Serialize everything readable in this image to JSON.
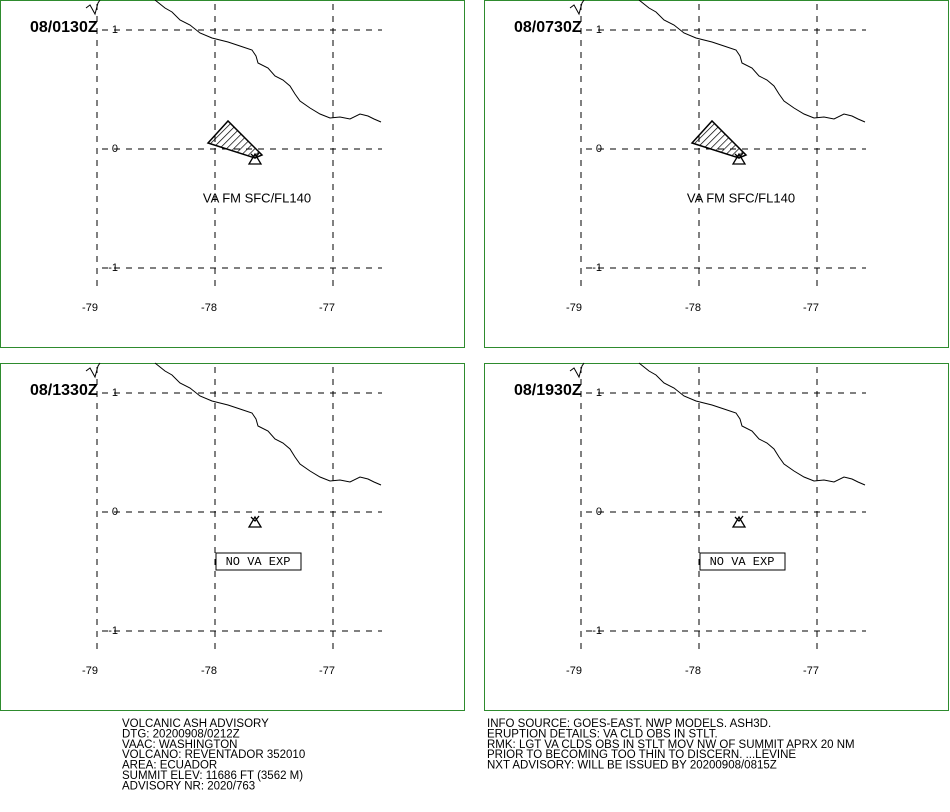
{
  "panels": [
    {
      "time": "08/0130Z",
      "lat_labels": [
        "1",
        "0",
        "-1"
      ],
      "lon_labels": [
        "-79",
        "-78",
        "-77"
      ],
      "annotation": "VA FM SFC/FL140",
      "ash": true
    },
    {
      "time": "08/0730Z",
      "lat_labels": [
        "1",
        "0",
        "-1"
      ],
      "lon_labels": [
        "-79",
        "-78",
        "-77"
      ],
      "annotation": "VA FM SFC/FL140",
      "ash": true
    },
    {
      "time": "08/1330Z",
      "lat_labels": [
        "1",
        "0",
        "-1"
      ],
      "lon_labels": [
        "-79",
        "-78",
        "-77"
      ],
      "annotation": "NO VA EXP",
      "ash": false
    },
    {
      "time": "08/1930Z",
      "lat_labels": [
        "1",
        "0",
        "-1"
      ],
      "lon_labels": [
        "-79",
        "-78",
        "-77"
      ],
      "annotation": "NO VA EXP",
      "ash": false
    }
  ],
  "footer": {
    "left": [
      "VOLCANIC ASH ADVISORY",
      "DTG: 20200908/0212Z",
      "VAAC: WASHINGTON",
      "VOLCANO: REVENTADOR 352010",
      "AREA: ECUADOR",
      "SUMMIT ELEV: 11686 FT (3562 M)",
      "ADVISORY NR: 2020/763"
    ],
    "right": [
      "INFO SOURCE: GOES-EAST. NWP MODELS. ASH3D.",
      "ERUPTION DETAILS: VA CLD OBS IN STLT.",
      "RMK: LGT VA CLDS OBS IN STLT MOV NW OF SUMMIT APRX 20 NM",
      "PRIOR TO BECOMING TOO THIN TO DISCERN. ...LEVINE",
      "NXT ADVISORY: WILL BE ISSUED BY 20200908/0815Z"
    ]
  }
}
